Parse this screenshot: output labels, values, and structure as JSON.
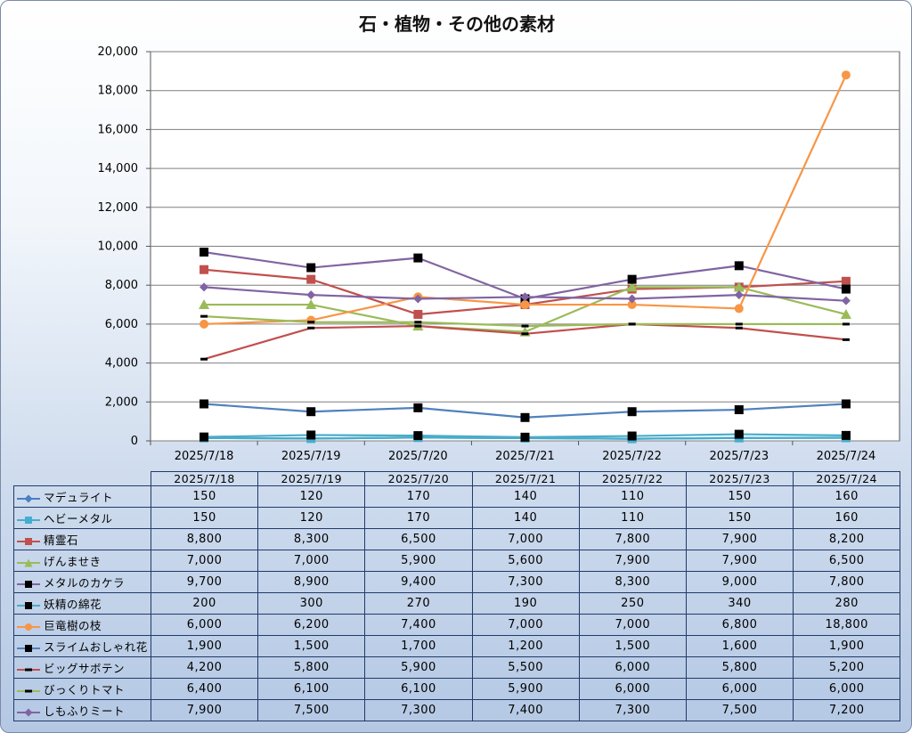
{
  "chart_data": {
    "type": "line",
    "title": "石・植物・その他の素材",
    "categories": [
      "2025/7/18",
      "2025/7/19",
      "2025/7/20",
      "2025/7/21",
      "2025/7/22",
      "2025/7/23",
      "2025/7/24"
    ],
    "ylim": [
      0,
      20000
    ],
    "yticks": [
      "0",
      "2,000",
      "4,000",
      "6,000",
      "8,000",
      "10,000",
      "12,000",
      "14,000",
      "16,000",
      "18,000",
      "20,000"
    ],
    "grid": true,
    "legend": "data-table",
    "series": [
      {
        "name": "マデュライト",
        "color": "#4a7fc0",
        "marker": "diamond",
        "values": [
          150,
          120,
          170,
          140,
          110,
          150,
          160
        ],
        "labels": [
          "150",
          "120",
          "170",
          "140",
          "110",
          "150",
          "160"
        ]
      },
      {
        "name": "ヘビーメタル",
        "color": "#44aed0",
        "marker": "square",
        "values": [
          150,
          120,
          170,
          140,
          110,
          150,
          160
        ],
        "labels": [
          "150",
          "120",
          "170",
          "140",
          "110",
          "150",
          "160"
        ]
      },
      {
        "name": "精霊石",
        "color": "#c0504d",
        "marker": "square",
        "values": [
          8800,
          8300,
          6500,
          7000,
          7800,
          7900,
          8200
        ],
        "labels": [
          "8,800",
          "8,300",
          "6,500",
          "7,000",
          "7,800",
          "7,900",
          "8,200"
        ]
      },
      {
        "name": "げんませき",
        "color": "#9bbb59",
        "marker": "triangle",
        "values": [
          7000,
          7000,
          5900,
          5600,
          7900,
          7900,
          6500
        ],
        "labels": [
          "7,000",
          "7,000",
          "5,900",
          "5,600",
          "7,900",
          "7,900",
          "6,500"
        ]
      },
      {
        "name": "メタルのカケラ",
        "color": "#8064a2",
        "marker": "square-black",
        "values": [
          9700,
          8900,
          9400,
          7300,
          8300,
          9000,
          7800
        ],
        "labels": [
          "9,700",
          "8,900",
          "9,400",
          "7,300",
          "8,300",
          "9,000",
          "7,800"
        ]
      },
      {
        "name": "妖精の綿花",
        "color": "#4bacc6",
        "marker": "square-black",
        "values": [
          200,
          300,
          270,
          190,
          250,
          340,
          280
        ],
        "labels": [
          "200",
          "300",
          "270",
          "190",
          "250",
          "340",
          "280"
        ]
      },
      {
        "name": "巨竜樹の枝",
        "color": "#f79646",
        "marker": "circle",
        "values": [
          6000,
          6200,
          7400,
          7000,
          7000,
          6800,
          18800
        ],
        "labels": [
          "6,000",
          "6,200",
          "7,400",
          "7,000",
          "7,000",
          "6,800",
          "18,800"
        ]
      },
      {
        "name": "スライムおしゃれ花",
        "color": "#4f81bd",
        "marker": "square-black",
        "values": [
          1900,
          1500,
          1700,
          1200,
          1500,
          1600,
          1900
        ],
        "labels": [
          "1,900",
          "1,500",
          "1,700",
          "1,200",
          "1,500",
          "1,600",
          "1,900"
        ]
      },
      {
        "name": "ビッグサボテン",
        "color": "#c0504d",
        "marker": "dash",
        "values": [
          4200,
          5800,
          5900,
          5500,
          6000,
          5800,
          5200
        ],
        "labels": [
          "4,200",
          "5,800",
          "5,900",
          "5,500",
          "6,000",
          "5,800",
          "5,200"
        ]
      },
      {
        "name": "びっくりトマト",
        "color": "#9bbb59",
        "marker": "dash",
        "values": [
          6400,
          6100,
          6100,
          5900,
          6000,
          6000,
          6000
        ],
        "labels": [
          "6,400",
          "6,100",
          "6,100",
          "5,900",
          "6,000",
          "6,000",
          "6,000"
        ]
      },
      {
        "name": "しもふりミート",
        "color": "#8064a2",
        "marker": "diamond",
        "values": [
          7900,
          7500,
          7300,
          7400,
          7300,
          7500,
          7200
        ],
        "labels": [
          "7,900",
          "7,500",
          "7,300",
          "7,400",
          "7,300",
          "7,500",
          "7,200"
        ]
      }
    ]
  }
}
